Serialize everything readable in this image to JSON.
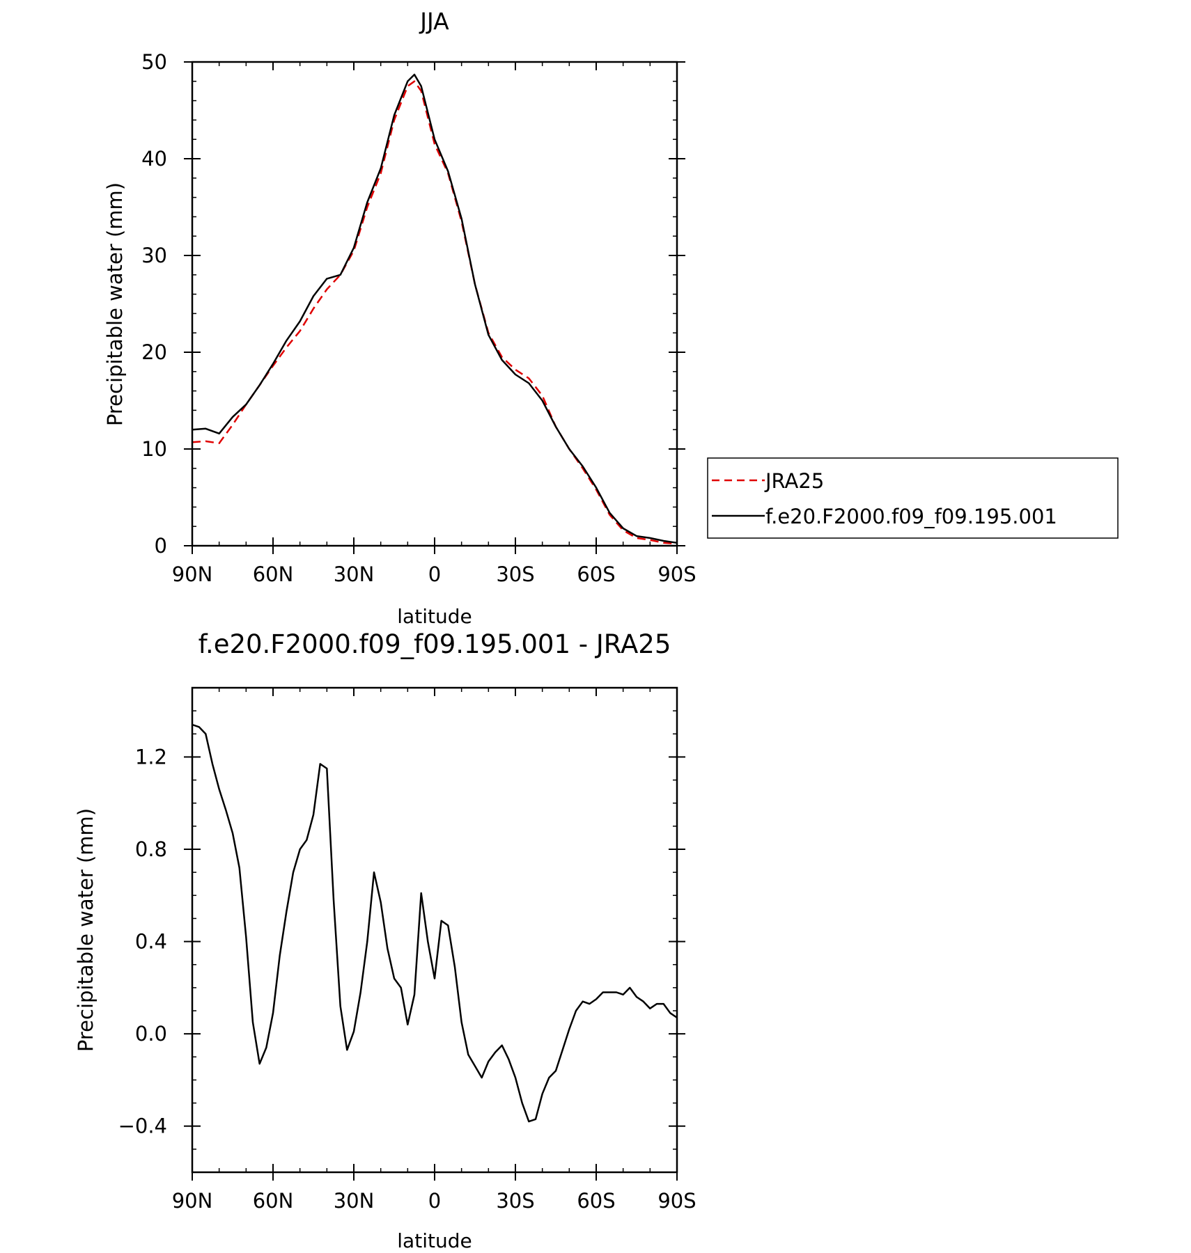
{
  "chart_data": [
    {
      "type": "line",
      "title": "JJA",
      "xlabel": "latitude",
      "ylabel": "Precipitable water (mm)",
      "xlim": [
        90,
        -90
      ],
      "ylim": [
        0,
        50
      ],
      "x_ticks": [
        90,
        60,
        30,
        0,
        -30,
        -60,
        -90
      ],
      "x_tick_labels": [
        "90N",
        "60N",
        "30N",
        "0",
        "30S",
        "60S",
        "90S"
      ],
      "y_ticks": [
        0,
        10,
        20,
        30,
        40,
        50
      ],
      "y_tick_labels": [
        "0",
        "10",
        "20",
        "30",
        "40",
        "50"
      ],
      "legend_position": "right",
      "series": [
        {
          "name": "JRA25",
          "color": "#e00000",
          "dashed": true,
          "x": [
            90,
            85,
            80,
            75,
            70,
            65,
            60,
            55,
            50,
            45,
            40,
            35,
            30,
            25,
            20,
            15,
            10,
            7.5,
            5,
            0,
            -5,
            -10,
            -15,
            -20,
            -25,
            -30,
            -35,
            -40,
            -45,
            -50,
            -55,
            -60,
            -65,
            -70,
            -75,
            -80,
            -85,
            -90
          ],
          "values": [
            10.7,
            10.8,
            10.6,
            12.5,
            14.6,
            16.6,
            18.6,
            20.5,
            22.2,
            24.5,
            26.5,
            28.0,
            30.5,
            35.0,
            38.5,
            44.0,
            47.5,
            48.0,
            47.0,
            41.5,
            38.5,
            33.5,
            27.0,
            22.0,
            19.5,
            18.2,
            17.3,
            15.5,
            12.3,
            10.0,
            8.0,
            5.8,
            3.2,
            1.6,
            0.8,
            0.6,
            0.3,
            0.2
          ]
        },
        {
          "name": "f.e20.F2000.f09_f09.195.001",
          "color": "#000000",
          "dashed": false,
          "x": [
            90,
            85,
            80,
            75,
            70,
            65,
            60,
            55,
            50,
            45,
            40,
            35,
            30,
            25,
            20,
            15,
            10,
            7.5,
            5,
            0,
            -5,
            -10,
            -15,
            -20,
            -25,
            -30,
            -35,
            -40,
            -45,
            -50,
            -55,
            -60,
            -65,
            -70,
            -75,
            -80,
            -85,
            -90
          ],
          "values": [
            12.0,
            12.1,
            11.6,
            13.3,
            14.6,
            16.6,
            18.8,
            21.2,
            23.2,
            25.8,
            27.6,
            28.0,
            30.8,
            35.5,
            39.0,
            44.5,
            48.0,
            48.7,
            47.5,
            42.0,
            38.7,
            33.8,
            27.0,
            21.8,
            19.2,
            17.7,
            16.8,
            15.0,
            12.3,
            10.0,
            8.2,
            6.0,
            3.4,
            1.8,
            1.0,
            0.8,
            0.5,
            0.3
          ]
        }
      ]
    },
    {
      "type": "line",
      "title": "f.e20.F2000.f09_f09.195.001 - JRA25",
      "xlabel": "latitude",
      "ylabel": "Precipitable water (mm)",
      "xlim": [
        90,
        -90
      ],
      "ylim": [
        -0.6,
        1.5
      ],
      "x_ticks": [
        90,
        60,
        30,
        0,
        -30,
        -60,
        -90
      ],
      "x_tick_labels": [
        "90N",
        "60N",
        "30N",
        "0",
        "30S",
        "60S",
        "90S"
      ],
      "y_ticks": [
        -0.4,
        0.0,
        0.4,
        0.8,
        1.2
      ],
      "y_tick_labels": [
        "−0.4",
        "0.0",
        "0.4",
        "0.8",
        "1.2"
      ],
      "series": [
        {
          "color": "#000000",
          "x": [
            90,
            87.5,
            85,
            82.5,
            80,
            77.5,
            75,
            72.5,
            70,
            67.5,
            65,
            62.5,
            60,
            57.5,
            55,
            52.5,
            50,
            47.5,
            45,
            42.5,
            40,
            37.5,
            35,
            32.5,
            30,
            27.5,
            25,
            22.5,
            20,
            17.5,
            15,
            12.5,
            10,
            7.5,
            5,
            2.5,
            0,
            -2.5,
            -5,
            -7.5,
            -10,
            -12.5,
            -15,
            -17.5,
            -20,
            -22.5,
            -25,
            -27.5,
            -30,
            -32.5,
            -35,
            -37.5,
            -40,
            -42.5,
            -45,
            -47.5,
            -50,
            -52.5,
            -55,
            -57.5,
            -60,
            -62.5,
            -65,
            -67.5,
            -70,
            -72.5,
            -75,
            -77.5,
            -80,
            -82.5,
            -85,
            -87.5,
            -90
          ],
          "values": [
            1.34,
            1.33,
            1.3,
            1.17,
            1.06,
            0.97,
            0.87,
            0.72,
            0.42,
            0.05,
            -0.13,
            -0.06,
            0.09,
            0.34,
            0.53,
            0.7,
            0.8,
            0.84,
            0.95,
            1.17,
            1.15,
            0.58,
            0.12,
            -0.07,
            0.01,
            0.18,
            0.4,
            0.7,
            0.57,
            0.37,
            0.24,
            0.2,
            0.04,
            0.17,
            0.61,
            0.4,
            0.24,
            0.49,
            0.47,
            0.29,
            0.05,
            -0.09,
            -0.14,
            -0.19,
            -0.12,
            -0.08,
            -0.05,
            -0.11,
            -0.19,
            -0.3,
            -0.38,
            -0.37,
            -0.26,
            -0.19,
            -0.16,
            -0.07,
            0.02,
            0.1,
            0.14,
            0.13,
            0.15,
            0.18,
            0.18,
            0.18,
            0.17,
            0.2,
            0.16,
            0.14,
            0.11,
            0.13,
            0.13,
            0.09,
            0.07
          ]
        }
      ]
    }
  ]
}
